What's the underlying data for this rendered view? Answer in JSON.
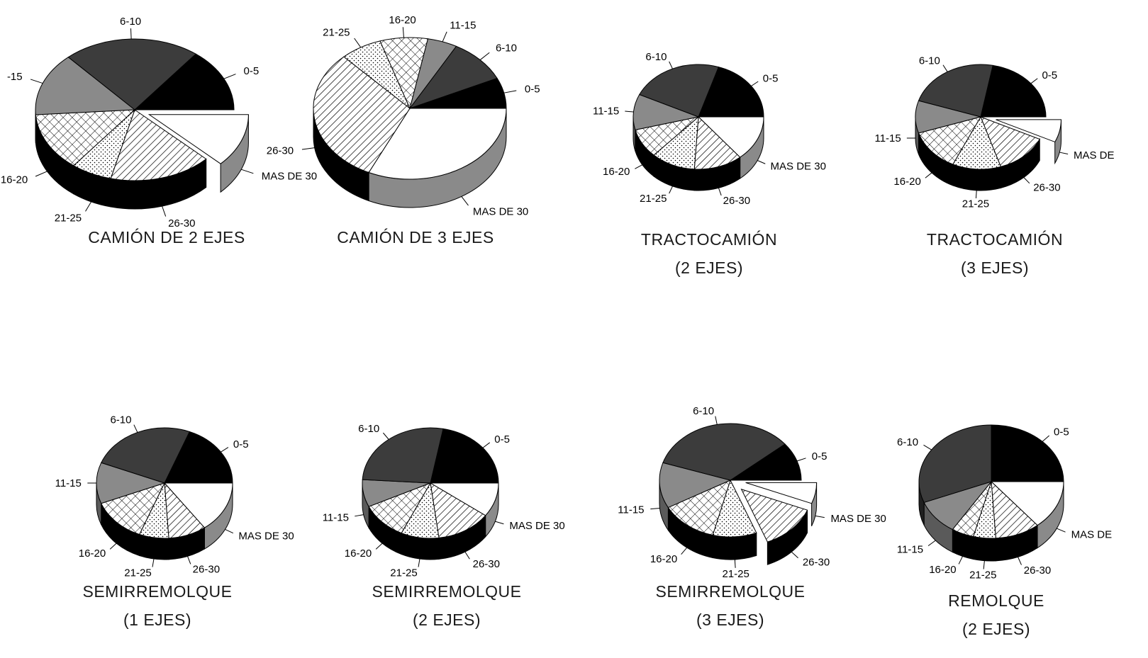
{
  "chart_data": [
    {
      "type": "pie",
      "title": [
        "CAMIÓN DE 2 EJES"
      ],
      "labels": [
        "0-5",
        "MAS DE 30",
        "26-30",
        "21-25",
        "16-20",
        "-15",
        "6-10"
      ],
      "values": [
        13,
        11,
        15,
        6,
        12,
        13,
        20
      ],
      "exploded": [
        "MAS DE 30"
      ]
    },
    {
      "type": "pie",
      "title": [
        "CAMIÓN DE 3 EJES"
      ],
      "labels": [
        "0-5",
        "MAS DE 30",
        "26-30",
        "21-25",
        "16-20",
        "11-15",
        "6-10"
      ],
      "values": [
        7,
        32,
        31,
        7,
        8,
        5,
        10
      ]
    },
    {
      "type": "pie",
      "title": [
        "TRACTOCAMIÓN",
        "(2 EJES)"
      ],
      "labels": [
        "0-5",
        "MAS DE 30",
        "26-30",
        "21-25",
        "16-20",
        "11-15",
        "6-10"
      ],
      "values": [
        20,
        14,
        12,
        11,
        9,
        11,
        23
      ]
    },
    {
      "type": "pie",
      "title": [
        "TRACTOCAMIÓN",
        "(3 EJES)"
      ],
      "labels": [
        "0-5",
        "MAS DE",
        "26-30",
        "21-25",
        "16-20",
        "11-15",
        "6-10"
      ],
      "values": [
        22,
        7,
        13,
        12,
        13,
        10,
        23
      ],
      "exploded": [
        "MAS DE"
      ]
    },
    {
      "type": "pie",
      "title": [
        "SEMIRREMOLQUE",
        "(1 EJES)"
      ],
      "labels": [
        "0-5",
        "MAS DE 30",
        "26-30",
        "21-25",
        "16-20",
        "11-15",
        "6-10"
      ],
      "values": [
        19,
        15,
        9,
        7,
        13,
        12,
        25
      ]
    },
    {
      "type": "pie",
      "title": [
        "SEMIRREMOLQUE",
        "(2 EJES)"
      ],
      "labels": [
        "0-5",
        "MAS DE 30",
        "26-30",
        "21-25",
        "16-20",
        "11-15",
        "6-10"
      ],
      "values": [
        22,
        10,
        13,
        9,
        11,
        8,
        27
      ]
    },
    {
      "type": "pie",
      "title": [
        "SEMIRREMOLQUE",
        "(3 EJES)"
      ],
      "labels": [
        "0-5",
        "MAS DE 30",
        "26-30",
        "21-25",
        "16-20",
        "11-15",
        "6-10"
      ],
      "values": [
        11,
        6,
        13,
        10,
        13,
        13,
        34
      ],
      "exploded": [
        "MAS DE 30",
        "26-30"
      ]
    },
    {
      "type": "pie",
      "title": [
        "REMOLQUE",
        "(2 EJES)"
      ],
      "labels": [
        "0-5",
        "MAS DE",
        "26-30",
        "21-25",
        "16-20",
        "11-15",
        "6-10"
      ],
      "values": [
        25,
        14,
        10,
        5,
        5,
        10,
        31
      ]
    }
  ]
}
